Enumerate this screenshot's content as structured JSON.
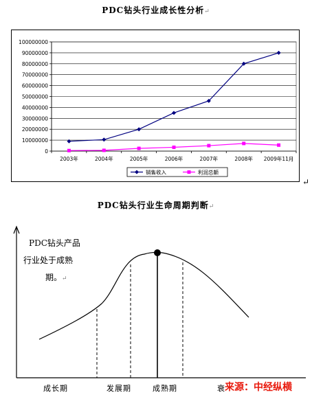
{
  "chart_data": [
    {
      "type": "line",
      "title": "PDC钻头行业成长性分析",
      "categories": [
        "2003年",
        "2004年",
        "2005年",
        "2006年",
        "2007年",
        "2008年",
        "2009年11月"
      ],
      "ylim": [
        0,
        100000000
      ],
      "yticks": [
        "0",
        "10000000",
        "20000000",
        "30000000",
        "40000000",
        "50000000",
        "60000000",
        "70000000",
        "80000000",
        "90000000",
        "100000000"
      ],
      "grid": true,
      "legend_position": "bottom",
      "series": [
        {
          "name": "销售收入",
          "color": "#000080",
          "marker": "diamond",
          "values": [
            9000000,
            10500000,
            20000000,
            35000000,
            46000000,
            80000000,
            90000000
          ]
        },
        {
          "name": "利润总额",
          "color": "#ff00ff",
          "marker": "square",
          "values": [
            500000,
            700000,
            2500000,
            3500000,
            5000000,
            7000000,
            5500000
          ]
        }
      ]
    },
    {
      "type": "line",
      "title": "PDC钻头行业生命周期判断",
      "annotation": [
        "PDC钻头产品",
        "行业处于成熟",
        "期。"
      ],
      "stages": [
        "成长期",
        "发展期",
        "成熟期",
        "衰"
      ]
    }
  ],
  "para_mark": "↵",
  "source": "来源：中经纵横"
}
